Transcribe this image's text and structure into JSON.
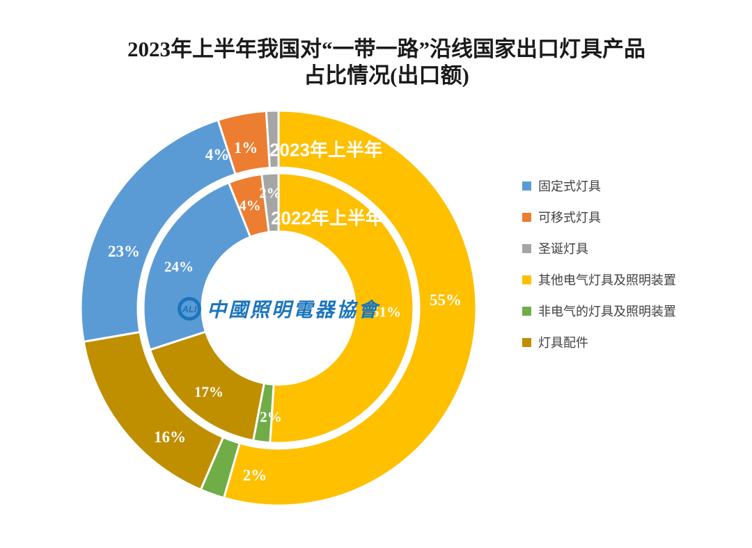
{
  "title": {
    "line1": "2023年上半年我国对“一带一路”沿线国家出口灯具产品",
    "line2": "占比情况(出口额)"
  },
  "logo": {
    "abbr": "ALI",
    "text": "中國照明電器協會",
    "color": "#1B75BC"
  },
  "chart_data": {
    "type": "pie",
    "subtype": "double-ring-donut",
    "title": "2023年上半年我国对“一带一路”沿线国家出口灯具产品占比情况(出口额)",
    "categories": [
      "固定式灯具",
      "可移式灯具",
      "圣诞灯具",
      "其他电气灯具及照明装置",
      "非电气的灯具及照明装置",
      "灯具配件"
    ],
    "colors": [
      "#5B9BD5",
      "#ED7D31",
      "#A5A5A5",
      "#FFC000",
      "#70AD47",
      "#BF8F00"
    ],
    "series": [
      {
        "name": "2023年上半年",
        "ring": "outer",
        "values": [
          23,
          4,
          1,
          55,
          2,
          16
        ],
        "labels": [
          "23%",
          "4%",
          "1%",
          "55%",
          "2%",
          "16%"
        ]
      },
      {
        "name": "2022年上半年",
        "ring": "inner",
        "values": [
          24,
          4,
          2,
          51,
          2,
          17
        ],
        "labels": [
          "24%",
          "4%",
          "2%",
          "51%",
          "2%",
          "17%"
        ]
      }
    ],
    "clockwise_order_from_top": [
      3,
      4,
      5,
      0,
      1,
      2
    ],
    "legend_position": "right",
    "label_color": "#FFFFFF"
  }
}
